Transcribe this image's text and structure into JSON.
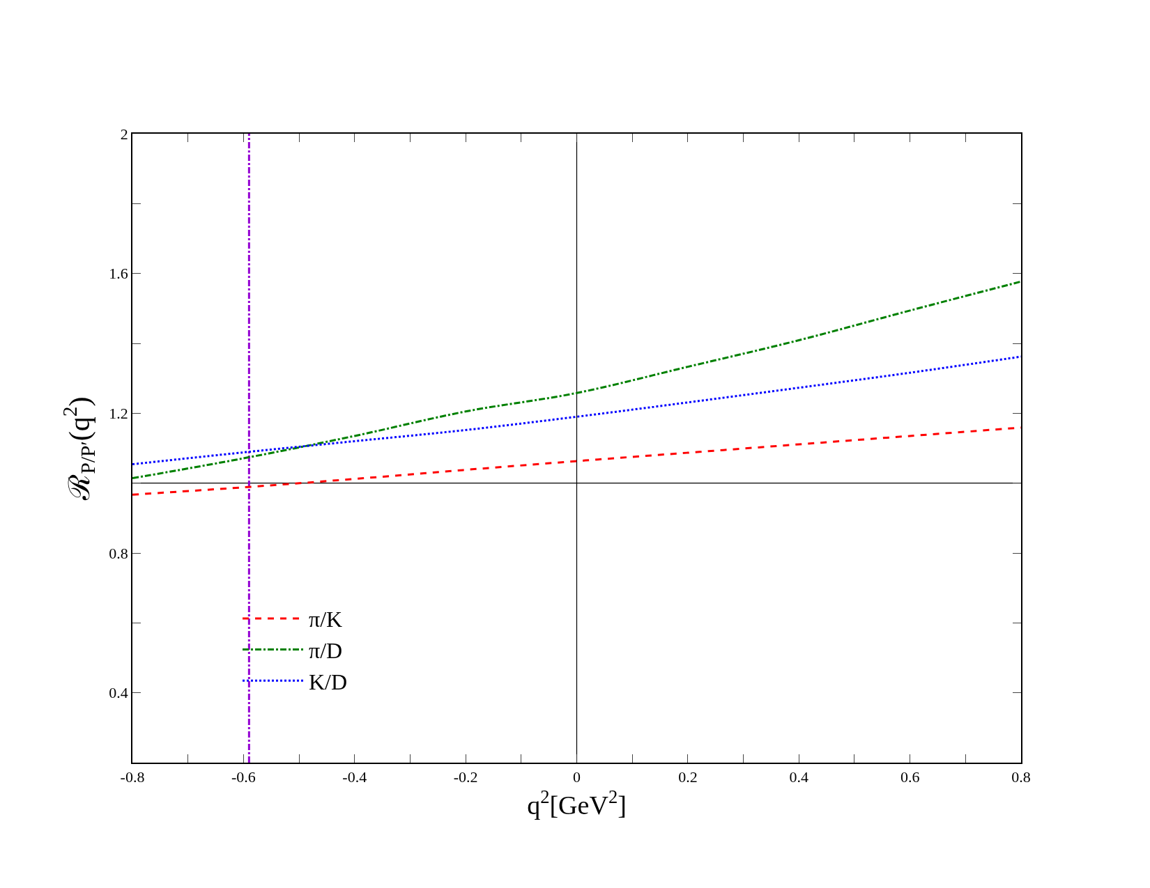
{
  "chart_data": {
    "type": "line",
    "xlabel": "q$^{2}$[GeV$^{2}$]",
    "ylabel": "ℛ$_{P/P′}$(q$^{2}$)",
    "x": [
      -0.8,
      -0.6,
      -0.4,
      -0.2,
      0,
      0.2,
      0.4,
      0.6,
      0.8
    ],
    "series": [
      {
        "name": "π/K",
        "color": "#ff0000",
        "line_style": "dashed",
        "values": [
          0.967,
          0.988,
          1.012,
          1.038,
          1.063,
          1.087,
          1.111,
          1.135,
          1.159
        ]
      },
      {
        "name": "π/D",
        "color": "#008000",
        "line_style": "dashdot",
        "values": [
          1.014,
          1.071,
          1.135,
          1.205,
          1.258,
          1.333,
          1.409,
          1.494,
          1.577
        ]
      },
      {
        "name": "K/D",
        "color": "#0000ff",
        "line_style": "dotted",
        "values": [
          1.054,
          1.088,
          1.12,
          1.152,
          1.19,
          1.231,
          1.273,
          1.316,
          1.362
        ]
      }
    ],
    "ref_lines": [
      {
        "axis": "x",
        "value": 0,
        "color": "#000000",
        "line_style": "solid"
      },
      {
        "axis": "y",
        "value": 1,
        "color": "#000000",
        "line_style": "solid"
      },
      {
        "axis": "x",
        "value": -0.59,
        "color": "#9400d3",
        "line_style": "dashdot"
      }
    ],
    "xlim": [
      -0.8,
      0.8
    ],
    "xticks": [
      -0.8,
      {
        "value": -0.7,
        "label": null
      },
      -0.6,
      {
        "value": -0.5,
        "label": null
      },
      -0.4,
      {
        "value": -0.3,
        "label": null
      },
      -0.2,
      {
        "value": -0.1,
        "label": null
      },
      0,
      {
        "value": 0.1,
        "label": null
      },
      0.2,
      {
        "value": 0.3,
        "label": null
      },
      0.4,
      {
        "value": 0.5,
        "label": null
      },
      0.6,
      {
        "value": 0.7,
        "label": null
      },
      0.8
    ],
    "ylim": [
      0.2,
      2
    ],
    "yticks": [
      0.4,
      {
        "value": 0.6,
        "label": null
      },
      0.8,
      {
        "value": 1.0,
        "label": null
      },
      1.2,
      {
        "value": 1.4,
        "label": null
      },
      1.6,
      {
        "value": 1.8,
        "label": null
      },
      2
    ],
    "grid": false,
    "legend": "bottom left",
    "marker": "none"
  }
}
